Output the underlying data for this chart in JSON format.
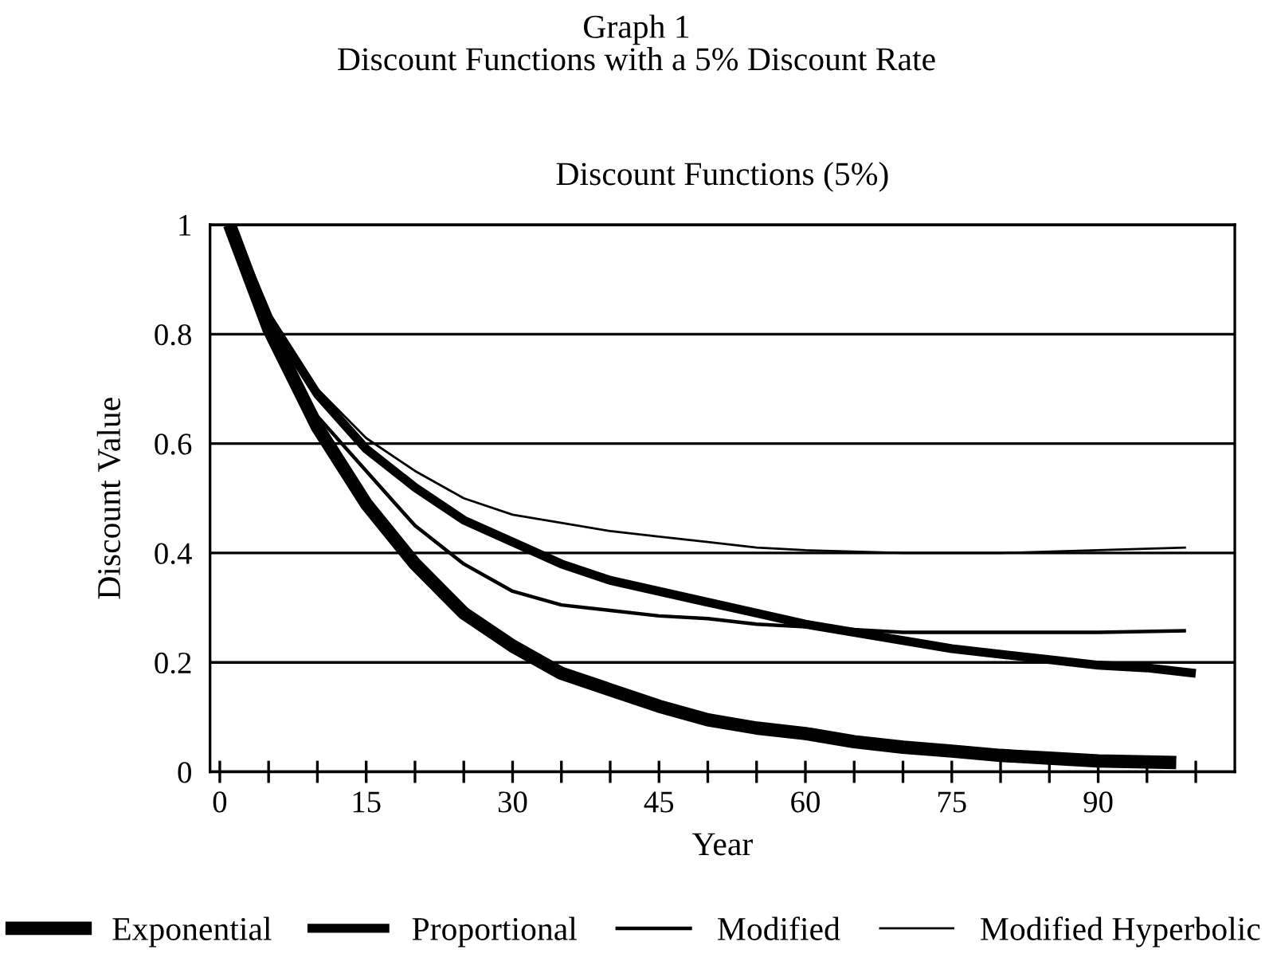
{
  "chart_data": {
    "type": "line",
    "title": "Graph 1\nDiscount Functions with a 5% Discount Rate",
    "subtitle": "Discount Functions (5%)",
    "xlabel": "Year",
    "ylabel": "Discount Value",
    "xlim": [
      -1,
      104
    ],
    "ylim": [
      0,
      1
    ],
    "xticks": [
      0,
      {
        "value": 5,
        "label": null
      },
      {
        "value": 10,
        "label": null
      },
      15,
      {
        "value": 20,
        "label": null
      },
      {
        "value": 25,
        "label": null
      },
      30,
      {
        "value": 35,
        "label": null
      },
      {
        "value": 40,
        "label": null
      },
      45,
      {
        "value": 50,
        "label": null
      },
      {
        "value": 55,
        "label": null
      },
      60,
      {
        "value": 65,
        "label": null
      },
      {
        "value": 70,
        "label": null
      },
      75,
      {
        "value": 80,
        "label": null
      },
      {
        "value": 85,
        "label": null
      },
      90,
      {
        "value": 95,
        "label": null
      },
      {
        "value": 100,
        "label": null
      }
    ],
    "yticks": [
      0,
      0.2,
      0.4,
      0.6,
      0.8,
      1
    ],
    "grid": "y",
    "legend": "bottom",
    "line_style": "solid",
    "marker": "none",
    "series": [
      {
        "name": "Exponential",
        "color": "#000000",
        "x": [
          1,
          5,
          10,
          15,
          20,
          25,
          30,
          35,
          40,
          45,
          50,
          55,
          60,
          65,
          70,
          75,
          80,
          85,
          90,
          98
        ],
        "values": [
          1,
          0.81,
          0.63,
          0.49,
          0.38,
          0.29,
          0.23,
          0.18,
          0.15,
          0.12,
          0.095,
          0.08,
          0.07,
          0.055,
          0.045,
          0.038,
          0.03,
          0.025,
          0.02,
          0.017
        ]
      },
      {
        "name": "Proportional",
        "color": "#000000",
        "x": [
          1,
          5,
          10,
          15,
          20,
          25,
          30,
          35,
          40,
          45,
          50,
          55,
          60,
          65,
          70,
          75,
          80,
          85,
          90,
          95,
          100
        ],
        "values": [
          1,
          0.83,
          0.69,
          0.59,
          0.52,
          0.46,
          0.42,
          0.38,
          0.35,
          0.33,
          0.31,
          0.29,
          0.27,
          0.255,
          0.24,
          0.225,
          0.215,
          0.205,
          0.195,
          0.19,
          0.18
        ]
      },
      {
        "name": "Modified",
        "color": "#000000",
        "x": [
          1,
          5,
          10,
          15,
          20,
          25,
          30,
          35,
          40,
          45,
          50,
          55,
          60,
          70,
          80,
          90,
          99
        ],
        "values": [
          1,
          0.81,
          0.65,
          0.55,
          0.45,
          0.38,
          0.33,
          0.305,
          0.295,
          0.285,
          0.28,
          0.27,
          0.265,
          0.255,
          0.255,
          0.255,
          0.258
        ]
      },
      {
        "name": "Modified Hyperbolic",
        "color": "#000000",
        "x": [
          1,
          5,
          10,
          15,
          20,
          25,
          30,
          35,
          40,
          45,
          50,
          55,
          60,
          70,
          80,
          90,
          99
        ],
        "values": [
          1,
          0.82,
          0.7,
          0.61,
          0.55,
          0.5,
          0.47,
          0.455,
          0.44,
          0.43,
          0.42,
          0.41,
          0.405,
          0.4,
          0.4,
          0.405,
          0.41
        ]
      }
    ]
  }
}
